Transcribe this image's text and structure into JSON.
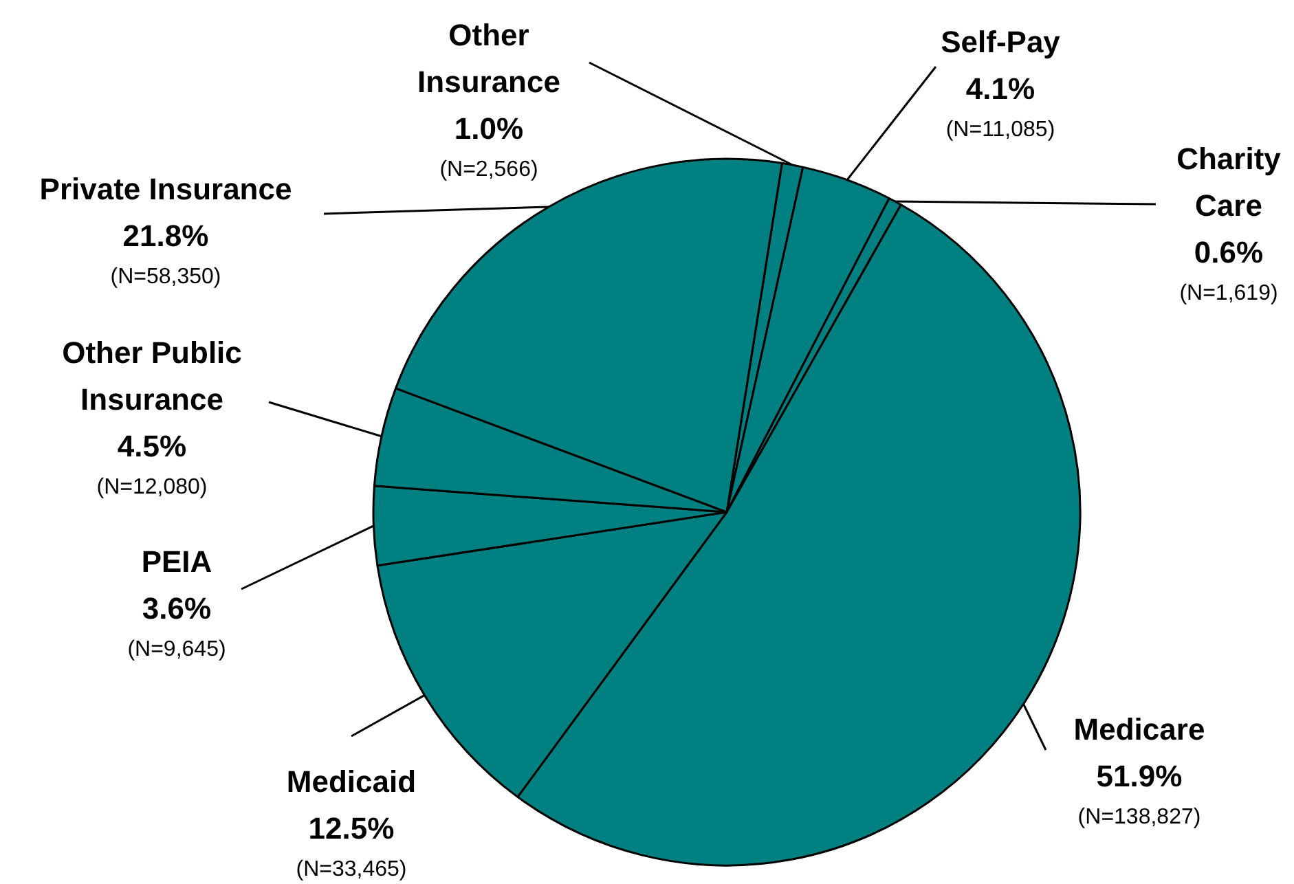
{
  "chart_data": {
    "type": "pie",
    "categories": [
      "Other Insurance",
      "Self-Pay",
      "Charity Care",
      "Medicare",
      "Medicaid",
      "PEIA",
      "Other Public Insurance",
      "Private Insurance"
    ],
    "values": [
      2566,
      11085,
      1619,
      138827,
      33465,
      9645,
      12080,
      58350
    ],
    "colors": [
      "#008080",
      "#008080",
      "#008080",
      "#008080",
      "#008080",
      "#008080",
      "#008080",
      "#008080"
    ],
    "value_labels": [
      "1.0%\n(N=2,566)",
      "4.1%\n(N=11,085)",
      "0.6%\n(N=1,619)",
      "51.9%\n(N=138,827)",
      "12.5%\n(N=33,465)",
      "3.6%\n(N=9,645)",
      "4.5%\n(N=12,080)",
      "21.8%\n(N=58,350)"
    ]
  }
}
